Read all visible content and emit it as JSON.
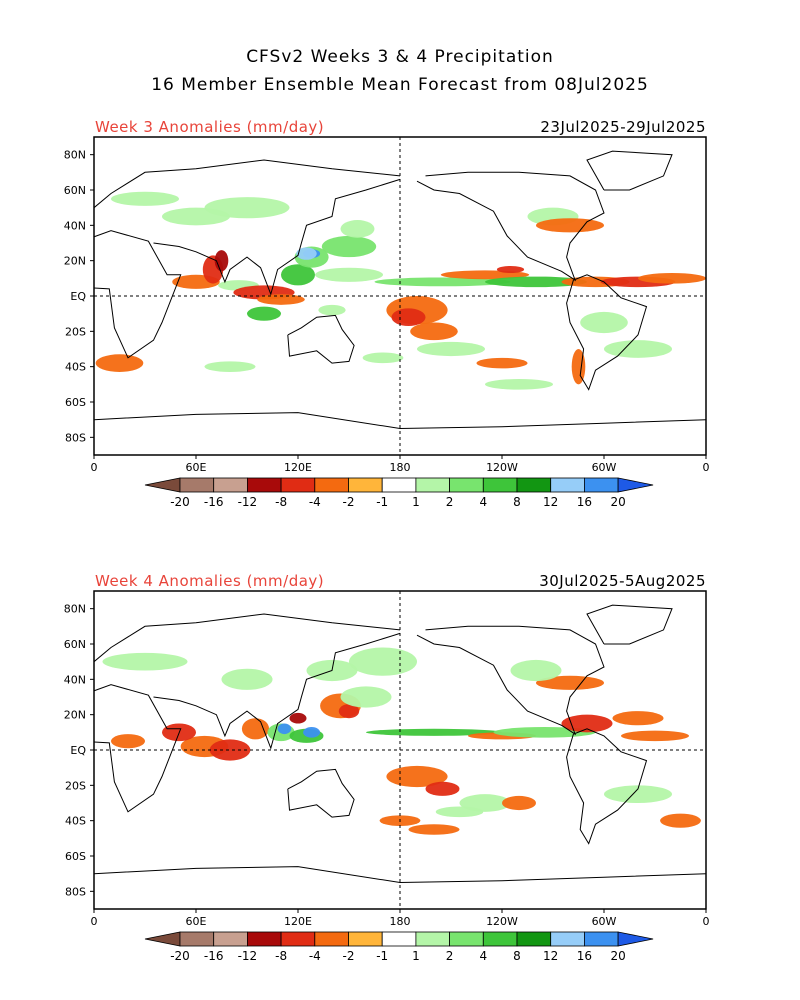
{
  "title_line1": "CFSv2 Weeks 3 & 4 Precipitation",
  "title_line2": "16 Member Ensemble Mean Forecast from 08Jul2025",
  "lat_labels": [
    "80N",
    "60N",
    "40N",
    "20N",
    "EQ",
    "20S",
    "40S",
    "60S",
    "80S"
  ],
  "lon_labels": [
    "0",
    "60E",
    "120E",
    "180",
    "120W",
    "60W",
    "0"
  ],
  "legend": {
    "tick_labels": [
      "-20",
      "-16",
      "-12",
      "-8",
      "-4",
      "-2",
      "-1",
      "1",
      "2",
      "4",
      "8",
      "12",
      "16",
      "20"
    ],
    "colors": [
      "#7a4a3a",
      "#a67a6a",
      "#c8a090",
      "#a80a0a",
      "#e02c14",
      "#f46a10",
      "#ffb53a",
      "#ffffff",
      "#b4f5a8",
      "#78e46e",
      "#3ec53a",
      "#129612",
      "#96cdf8",
      "#3c91f0",
      "#1e5ae6"
    ]
  },
  "panels": [
    {
      "label": "Week 3 Anomalies (mm/day)",
      "dates": "23Jul2025-29Jul2025"
    },
    {
      "label": "Week 4 Anomalies (mm/day)",
      "dates": "30Jul2025-5Aug2025"
    }
  ]
}
